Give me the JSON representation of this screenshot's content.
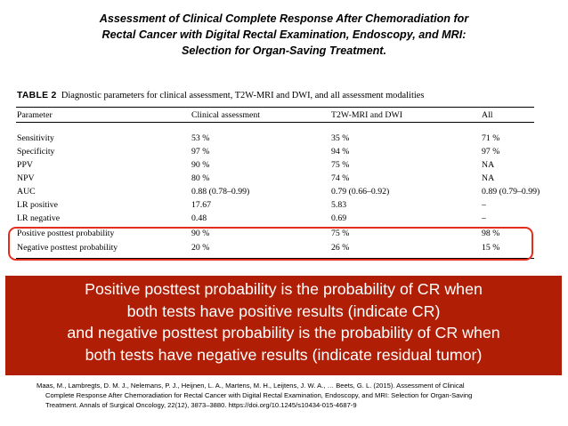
{
  "title": {
    "line1": "Assessment of Clinical Complete Response After Chemoradiation for",
    "line2": "Rectal Cancer with Digital Rectal Examination, Endoscopy, and MRI:",
    "line3": "Selection for Organ-Saving Treatment."
  },
  "table": {
    "label": "TABLE 2",
    "caption": "Diagnostic parameters for clinical assessment, T2W-MRI and DWI, and all assessment modalities",
    "headers": [
      "Parameter",
      "Clinical assessment",
      "T2W-MRI and DWI",
      "All"
    ],
    "rows": [
      [
        "Sensitivity",
        "53 %",
        "35 %",
        "71 %"
      ],
      [
        "Specificity",
        "97 %",
        "94 %",
        "97 %"
      ],
      [
        "PPV",
        "90 %",
        "75 %",
        "NA"
      ],
      [
        "NPV",
        "80 %",
        "74 %",
        "NA"
      ],
      [
        "AUC",
        "0.88 (0.78–0.99)",
        "0.79 (0.66–0.92)",
        "0.89 (0.79–0.99)"
      ],
      [
        "LR positive",
        "17.67",
        "5.83",
        "–"
      ],
      [
        "LR negative",
        "0.48",
        "0.69",
        "–"
      ],
      [
        "Positive posttest probability",
        "90 %",
        "75 %",
        "98 %"
      ],
      [
        "Negative posttest probability",
        "20 %",
        "26 %",
        "15 %"
      ]
    ]
  },
  "note": {
    "line1": "Positive posttest probability is the probability of CR when",
    "line2": "both tests have positive results (indicate CR)",
    "line3": "and negative posttest probability is the probability of CR when",
    "line4": "both tests have negative results (indicate residual tumor)"
  },
  "citation": {
    "line1": "Maas, M., Lambregts, D. M. J., Nelemans, P. J., Heijnen, L. A., Martens, M. H., Leijtens, J. W. A., … Beets, G. L. (2015). Assessment of Clinical",
    "line2": "Complete Response After Chemoradiation for Rectal Cancer with Digital Rectal Examination, Endoscopy, and MRI: Selection for Organ-Saving",
    "line3": "Treatment. Annals of Surgical Oncology, 22(12), 3873–3880. https://doi.org/10.1245/s10434-015-4687-9"
  },
  "colors": {
    "note_background": "#b01f05",
    "highlight_border": "#e52d1e"
  }
}
